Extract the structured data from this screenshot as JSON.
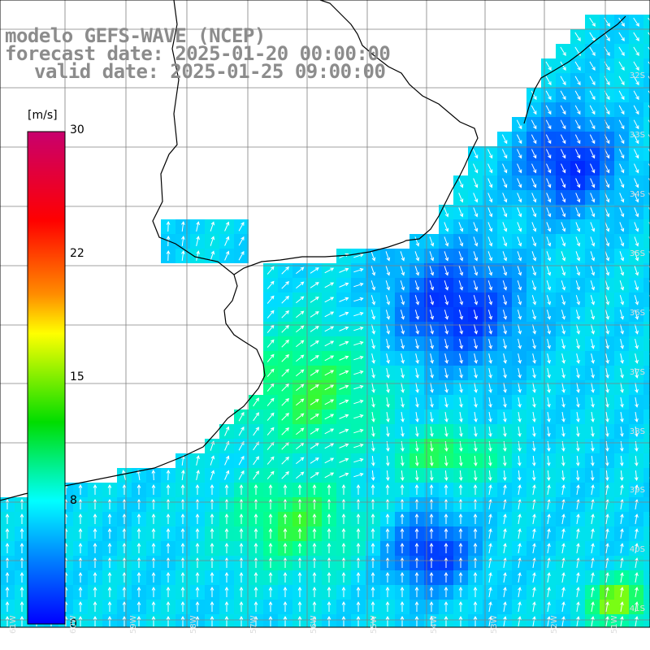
{
  "title": {
    "line1": "modelo GEFS-WAVE (NCEP)",
    "line2": "forecast date: 2025-01-20 00:00:00",
    "line3": "valid date: 2025-01-25 09:00:00"
  },
  "colorbar": {
    "unit": "[m/s]",
    "ticks": [
      "30",
      "22",
      "15",
      "8",
      "0"
    ],
    "stops": [
      "#c8006e",
      "#ff0000",
      "#ff8c00",
      "#ffff00",
      "#00ff00",
      "#00ffff",
      "#0064ff",
      "#0000ff"
    ]
  },
  "map": {
    "lat_labels": [
      "32S",
      "33S",
      "34S",
      "35S",
      "36S",
      "37S",
      "38S",
      "39S",
      "40S",
      "41S"
    ],
    "lon_labels": [
      "61W",
      "60W",
      "59W",
      "58W",
      "57W",
      "56W",
      "55W",
      "54W",
      "53W",
      "52W",
      "51W"
    ],
    "colors": {
      "land": "#ffffff",
      "grid": "#808080",
      "arrows": "#ffffff",
      "coast": "#000000"
    }
  }
}
